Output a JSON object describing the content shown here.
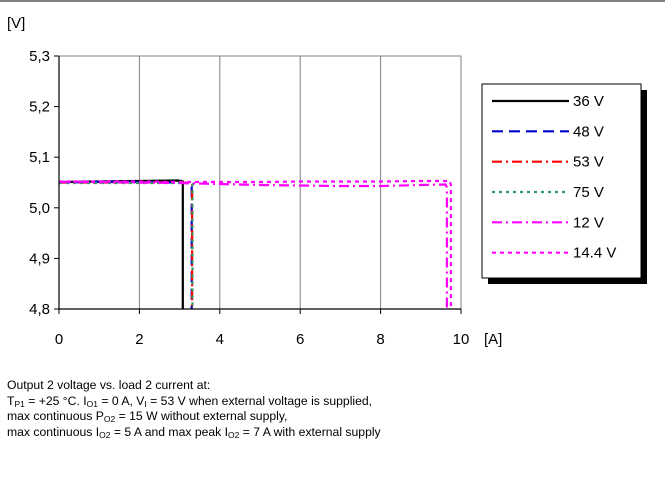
{
  "chart_data": {
    "type": "line",
    "xlabel": "[A]",
    "ylabel": "[V]",
    "xlim": [
      0,
      10
    ],
    "ylim": [
      4.8,
      5.3
    ],
    "xticks": [
      "0",
      "2",
      "4",
      "6",
      "8",
      "10"
    ],
    "yticks": [
      "4,8",
      "4,9",
      "5,0",
      "5,1",
      "5,2",
      "5,3"
    ],
    "grid": "vertical",
    "legend_position": "right",
    "series": [
      {
        "name": "36 V",
        "color": "#000000",
        "dash": "solid",
        "points": [
          [
            0,
            5.051
          ],
          [
            1.0,
            5.052
          ],
          [
            2.0,
            5.053
          ],
          [
            2.95,
            5.054
          ],
          [
            3.05,
            5.053
          ],
          [
            3.08,
            5.052
          ],
          [
            3.08,
            4.8
          ]
        ]
      },
      {
        "name": "48 V",
        "color": "#0000cc",
        "dash": "long-dash",
        "points": [
          [
            0,
            5.05
          ],
          [
            1.0,
            5.051
          ],
          [
            2.0,
            5.051
          ],
          [
            3.0,
            5.05
          ],
          [
            3.28,
            5.049
          ],
          [
            3.3,
            5.048
          ],
          [
            3.3,
            4.8
          ]
        ]
      },
      {
        "name": "53 V",
        "color": "#ff0000",
        "dash": "dash-dot",
        "points": [
          [
            0,
            5.05
          ],
          [
            1.0,
            5.05
          ],
          [
            2.0,
            5.05
          ],
          [
            3.0,
            5.05
          ],
          [
            3.28,
            5.049
          ],
          [
            3.31,
            5.048
          ],
          [
            3.31,
            4.8
          ]
        ]
      },
      {
        "name": "75 V",
        "color": "#339966",
        "dash": "dotted",
        "points": [
          [
            0,
            5.049
          ],
          [
            1.0,
            5.049
          ],
          [
            2.0,
            5.049
          ],
          [
            3.0,
            5.049
          ],
          [
            3.29,
            5.048
          ],
          [
            3.32,
            5.047
          ],
          [
            3.32,
            4.8
          ]
        ]
      },
      {
        "name": "12 V",
        "color": "#ff00ff",
        "dash": "dash-dot",
        "points": [
          [
            0,
            5.051
          ],
          [
            1.0,
            5.051
          ],
          [
            2.0,
            5.05
          ],
          [
            3.0,
            5.049
          ],
          [
            4.0,
            5.047
          ],
          [
            5.0,
            5.045
          ],
          [
            6.0,
            5.044
          ],
          [
            7.0,
            5.043
          ],
          [
            8.0,
            5.043
          ],
          [
            9.0,
            5.045
          ],
          [
            9.62,
            5.046
          ],
          [
            9.65,
            5.04
          ],
          [
            9.65,
            4.8
          ]
        ]
      },
      {
        "name": "14.4 V",
        "color": "#ff00ff",
        "dash": "short-dash",
        "points": [
          [
            0,
            5.052
          ],
          [
            1.0,
            5.052
          ],
          [
            2.0,
            5.052
          ],
          [
            3.0,
            5.051
          ],
          [
            4.0,
            5.051
          ],
          [
            5.0,
            5.051
          ],
          [
            6.0,
            5.052
          ],
          [
            7.0,
            5.052
          ],
          [
            8.0,
            5.052
          ],
          [
            9.0,
            5.053
          ],
          [
            9.72,
            5.053
          ],
          [
            9.75,
            5.045
          ],
          [
            9.75,
            4.8
          ]
        ]
      }
    ]
  },
  "caption": {
    "line1": "Output 2 voltage vs. load 2 current at:",
    "l2_a": "T",
    "l2_sub1": "P1",
    "l2_b": " = +25 °C. I",
    "l2_sub2": "O1",
    "l2_c": " = 0 A, V",
    "l2_sub3": "I",
    "l2_d": " = 53 V when external voltage is supplied,",
    "l3_a": "max continuous P",
    "l3_sub1": "O2",
    "l3_b": " = 15 W without external supply,",
    "l4_a": "max continuous I",
    "l4_sub1": "O2",
    "l4_b": " = 5 A and max peak I",
    "l4_sub2": "O2",
    "l4_c": " = 7 A with external supply"
  }
}
